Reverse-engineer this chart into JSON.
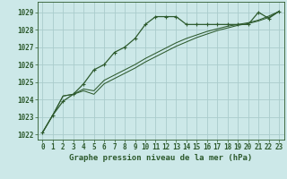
{
  "title": "Graphe pression niveau de la mer (hPa)",
  "bg_color": "#cce8e8",
  "grid_color": "#aacccc",
  "line_color": "#2d5a2d",
  "xlim": [
    -0.5,
    23.5
  ],
  "ylim": [
    1021.7,
    1029.6
  ],
  "yticks": [
    1022,
    1023,
    1024,
    1025,
    1026,
    1027,
    1028,
    1029
  ],
  "xticks": [
    0,
    1,
    2,
    3,
    4,
    5,
    6,
    7,
    8,
    9,
    10,
    11,
    12,
    13,
    14,
    15,
    16,
    17,
    18,
    19,
    20,
    21,
    22,
    23
  ],
  "series1_x": [
    0,
    1,
    2,
    3,
    4,
    5,
    6,
    7,
    8,
    9,
    10,
    11,
    12,
    13,
    14,
    15,
    16,
    17,
    18,
    19,
    20,
    21,
    22,
    23
  ],
  "series1_y": [
    1022.1,
    1023.1,
    1023.9,
    1024.3,
    1024.9,
    1025.7,
    1026.0,
    1026.7,
    1027.0,
    1027.5,
    1028.3,
    1028.75,
    1028.75,
    1028.75,
    1028.3,
    1028.3,
    1028.3,
    1028.3,
    1028.3,
    1028.3,
    1028.3,
    1029.0,
    1028.65,
    1029.05
  ],
  "series2_x": [
    0,
    1,
    2,
    3,
    4,
    5,
    6,
    7,
    8,
    9,
    10,
    11,
    12,
    13,
    14,
    15,
    16,
    17,
    18,
    19,
    20,
    21,
    22,
    23
  ],
  "series2_y": [
    1022.1,
    1023.1,
    1024.2,
    1024.3,
    1024.5,
    1024.3,
    1024.9,
    1025.2,
    1025.5,
    1025.8,
    1026.15,
    1026.45,
    1026.75,
    1027.05,
    1027.3,
    1027.55,
    1027.75,
    1027.95,
    1028.1,
    1028.25,
    1028.35,
    1028.5,
    1028.7,
    1029.05
  ],
  "series3_x": [
    0,
    1,
    2,
    3,
    4,
    5,
    6,
    7,
    8,
    9,
    10,
    11,
    12,
    13,
    14,
    15,
    16,
    17,
    18,
    19,
    20,
    21,
    22,
    23
  ],
  "series3_y": [
    1022.1,
    1023.1,
    1024.2,
    1024.3,
    1024.6,
    1024.5,
    1025.1,
    1025.4,
    1025.7,
    1026.0,
    1026.35,
    1026.65,
    1026.95,
    1027.25,
    1027.5,
    1027.7,
    1027.9,
    1028.05,
    1028.2,
    1028.3,
    1028.4,
    1028.55,
    1028.78,
    1029.05
  ],
  "title_fontsize": 6.5,
  "tick_fontsize": 5.5
}
